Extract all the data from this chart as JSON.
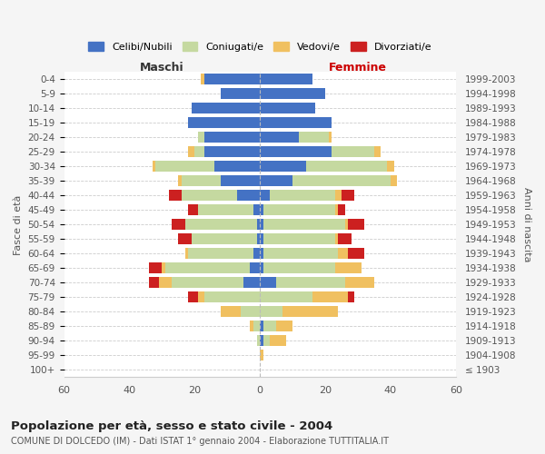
{
  "age_groups": [
    "100+",
    "95-99",
    "90-94",
    "85-89",
    "80-84",
    "75-79",
    "70-74",
    "65-69",
    "60-64",
    "55-59",
    "50-54",
    "45-49",
    "40-44",
    "35-39",
    "30-34",
    "25-29",
    "20-24",
    "15-19",
    "10-14",
    "5-9",
    "0-4"
  ],
  "birth_years": [
    "≤ 1903",
    "1904-1908",
    "1909-1913",
    "1914-1918",
    "1919-1923",
    "1924-1928",
    "1929-1933",
    "1934-1938",
    "1939-1943",
    "1944-1948",
    "1949-1953",
    "1954-1958",
    "1959-1963",
    "1964-1968",
    "1969-1973",
    "1974-1978",
    "1979-1983",
    "1984-1988",
    "1989-1993",
    "1994-1998",
    "1999-2003"
  ],
  "males": {
    "celibi": [
      0,
      0,
      0,
      0,
      0,
      0,
      5,
      3,
      2,
      1,
      1,
      2,
      7,
      12,
      14,
      17,
      17,
      22,
      21,
      12,
      17
    ],
    "coniugati": [
      0,
      0,
      1,
      2,
      6,
      17,
      22,
      26,
      20,
      20,
      22,
      17,
      17,
      12,
      18,
      3,
      2,
      0,
      0,
      0,
      0
    ],
    "vedovi": [
      0,
      0,
      0,
      1,
      6,
      2,
      4,
      1,
      1,
      0,
      0,
      0,
      0,
      1,
      1,
      2,
      0,
      0,
      0,
      0,
      1
    ],
    "divorziati": [
      0,
      0,
      0,
      0,
      0,
      3,
      3,
      4,
      0,
      4,
      4,
      3,
      4,
      0,
      0,
      0,
      0,
      0,
      0,
      0,
      0
    ]
  },
  "females": {
    "nubili": [
      0,
      0,
      1,
      1,
      0,
      0,
      5,
      1,
      1,
      1,
      1,
      1,
      3,
      10,
      14,
      22,
      12,
      22,
      17,
      20,
      16
    ],
    "coniugate": [
      0,
      0,
      2,
      4,
      7,
      16,
      21,
      22,
      23,
      22,
      25,
      22,
      20,
      30,
      25,
      13,
      9,
      0,
      0,
      0,
      0
    ],
    "vedove": [
      0,
      1,
      5,
      5,
      17,
      11,
      9,
      8,
      3,
      1,
      1,
      1,
      2,
      2,
      2,
      2,
      1,
      0,
      0,
      0,
      0
    ],
    "divorziate": [
      0,
      0,
      0,
      0,
      0,
      2,
      0,
      0,
      5,
      4,
      5,
      2,
      4,
      0,
      0,
      0,
      0,
      0,
      0,
      0,
      0
    ]
  },
  "colors": {
    "celibi_nubili": "#4472c4",
    "coniugati": "#c5d9a0",
    "vedovi": "#f0c060",
    "divorziati": "#cc2020"
  },
  "xlim": 60,
  "title": "Popolazione per età, sesso e stato civile - 2004",
  "subtitle": "COMUNE DI DOLCEDO (IM) - Dati ISTAT 1° gennaio 2004 - Elaborazione TUTTITALIA.IT",
  "xlabel_left": "Maschi",
  "xlabel_right": "Femmine",
  "xlabel_left_color": "#333333",
  "xlabel_right_color": "#cc0000",
  "ylabel_left": "Fasce di età",
  "ylabel_right": "Anni di nascita",
  "bg_color": "#f5f5f5",
  "plot_bg": "#ffffff",
  "legend_labels": [
    "Celibi/Nubili",
    "Coniugati/e",
    "Vedovi/e",
    "Divorziati/e"
  ]
}
